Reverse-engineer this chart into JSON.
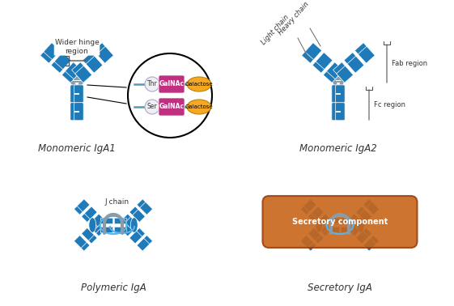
{
  "background_color": "#ffffff",
  "blue": "#1e7ab8",
  "blue2": "#2a8acc",
  "blue_light": "#5ab4e8",
  "grey": "#8a9baa",
  "purple": "#c03080",
  "orange": "#f5a820",
  "brown": "#c8651a",
  "brown_edge": "#a04010",
  "text_color": "#333333",
  "labels": {
    "iga1": "Monomeric IgA1",
    "iga2": "Monomeric IgA2",
    "polymeric": "Polymeric IgA",
    "secretory": "Secretory IgA",
    "wider_hinge": "Wider hinge\nregion",
    "heavy_chain": "Heavy chain",
    "light_chain": "Light chain",
    "fab_region": "Fab region",
    "fc_region": "Fc region",
    "j_chain": "J chain",
    "secretory_component": "Secretory component",
    "thr": "Thr",
    "ser": "Ser",
    "galnac": "GalNAc",
    "galactose": "Galactose"
  }
}
